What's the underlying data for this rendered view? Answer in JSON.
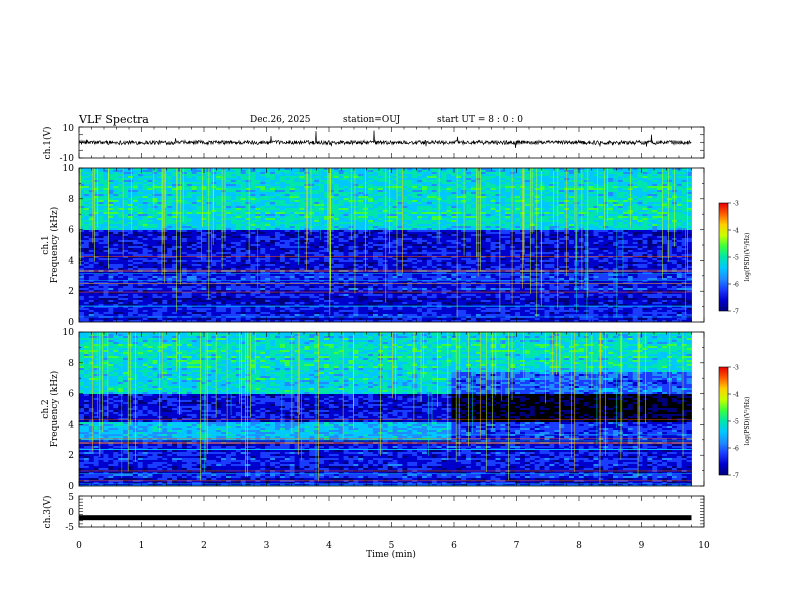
{
  "header": {
    "title": "VLF Spectra",
    "date": "Dec.26, 2025",
    "station": "station=OUJ",
    "start_ut": "start  UT =   8 : 0  : 0"
  },
  "chart_data": [
    {
      "type": "line",
      "panel": "ch1-waveform",
      "ylabel": "ch.1(V)",
      "ylim": [
        -10,
        10
      ],
      "yticks": [
        "10",
        "-10"
      ],
      "xlim": [
        0,
        10
      ],
      "trace_end_min": 9.8,
      "baseline_v": 0,
      "color": "#000000"
    },
    {
      "type": "heatmap",
      "panel": "ch1-spectrogram",
      "ylabel": "ch.1\nFrequency (kHz)",
      "ylim": [
        0,
        10
      ],
      "yticks": [
        "0",
        "2",
        "4",
        "6",
        "8",
        "10"
      ],
      "xlim": [
        0,
        10
      ],
      "data_end_min": 9.8,
      "colorbar": {
        "label": "log(PSD)(V²/Hz)",
        "range": [
          -7,
          -3
        ],
        "ticks": [
          "-3",
          "-4",
          "-5",
          "-6",
          "-7"
        ]
      }
    },
    {
      "type": "heatmap",
      "panel": "ch2-spectrogram",
      "ylabel": "ch.2\nFrequency (kHz)",
      "ylim": [
        0,
        10
      ],
      "yticks": [
        "0",
        "2",
        "4",
        "6",
        "8",
        "10"
      ],
      "xlim": [
        0,
        10
      ],
      "data_end_min": 9.8,
      "colorbar": {
        "label": "log(PSD)(V²/Hz)",
        "range": [
          -7,
          -3
        ],
        "ticks": [
          "-3",
          "-4",
          "-5",
          "-6",
          "-7"
        ]
      }
    },
    {
      "type": "line",
      "panel": "ch3-waveform",
      "ylabel": "ch.3(V)",
      "ylim": [
        -5,
        5
      ],
      "yticks": [
        "5",
        "0",
        "-5"
      ],
      "xlim": [
        0,
        10
      ],
      "trace_end_min": 9.8,
      "level_v": -2,
      "color": "#000000"
    }
  ],
  "x_axis": {
    "label": "Time (min)",
    "ticks": [
      "0",
      "1",
      "2",
      "3",
      "4",
      "5",
      "6",
      "7",
      "8",
      "9",
      "10"
    ]
  },
  "colormap": [
    "#000000",
    "#00007a",
    "#0000cd",
    "#1a3cff",
    "#1e8cff",
    "#00c8ff",
    "#00e6aa",
    "#3cff3c",
    "#c8ff00",
    "#ffd000",
    "#ff5a00",
    "#e60000",
    "#ffffff"
  ]
}
